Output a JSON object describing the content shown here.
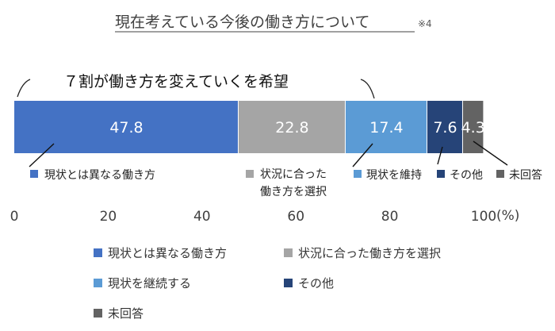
{
  "title": "現在考えている今後の働き方について",
  "title_note": "※4",
  "callout": "７割が働き方を変えていくを希望",
  "x_unit": "(%)",
  "colors": {
    "series1": "#4472C4",
    "series2": "#A5A5A5",
    "series3": "#5B9BD5",
    "series4": "#264478",
    "series5": "#636363",
    "axis_text": "#404040",
    "bar_label": "#FFFFFF"
  },
  "chart_data": {
    "type": "bar",
    "orientation": "horizontal",
    "stacked": true,
    "categories": [
      ""
    ],
    "series": [
      {
        "name": "現状とは異なる働き方",
        "values": [
          47.8
        ]
      },
      {
        "name": "状況に合った働き方を選択",
        "values": [
          22.8
        ]
      },
      {
        "name": "現状を継続する",
        "values": [
          17.4
        ]
      },
      {
        "name": "その他",
        "values": [
          7.6
        ]
      },
      {
        "name": "未回答",
        "values": [
          4.3
        ]
      }
    ],
    "data_labels": [
      "47.8",
      "22.8",
      "17.4",
      "7.6",
      "4.3"
    ],
    "xlim": [
      0,
      100
    ],
    "xticks": [
      "0",
      "20",
      "40",
      "60",
      "80",
      "100"
    ],
    "grid": false,
    "legend_position": "bottom"
  },
  "annotations": [
    {
      "lines": [
        "現状とは異なる働き方"
      ]
    },
    {
      "lines": [
        "状況に合った",
        "働き方を選択"
      ]
    },
    {
      "lines": [
        "現状を維持"
      ]
    },
    {
      "lines": [
        "その他"
      ]
    },
    {
      "lines": [
        "未回答"
      ]
    }
  ]
}
